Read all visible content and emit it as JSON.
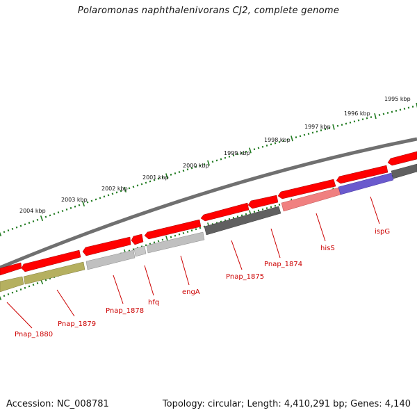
{
  "title": "Polaromonas naphthalenivorans CJ2, complete genome",
  "footer": {
    "accession": "Accession: NC_008781",
    "topology": "Topology: circular; Length: 4,410,291 bp; Genes: 4,140"
  },
  "scale_labels": [
    "1995 kbp",
    "1996 kbp",
    "1997 kbp",
    "1998 kbp",
    "1999 kbp",
    "2000 kbp",
    "2001 kbp",
    "2002 kbp",
    "2003 kbp",
    "2004 kbp"
  ],
  "gene_labels": [
    "ispG",
    "hisS",
    "Pnap_1874",
    "Pnap_1875",
    "engA",
    "hfq",
    "Pnap_1878",
    "Pnap_1879",
    "Pnap_1880"
  ],
  "colors": {
    "forward_gene": "#ff0000",
    "backbone": "#808080",
    "tick_green": "#1f7a1f",
    "label_red": "#cc0000",
    "ispG": "#6a5acd",
    "hisS": "#f08080",
    "engA": "#c0c0c0",
    "Pnap_1874": "#606060",
    "Pnap_1878": "#c0c0c0",
    "Pnap_1879": "#b5b060",
    "Pnap_1880": "#b5b060"
  }
}
